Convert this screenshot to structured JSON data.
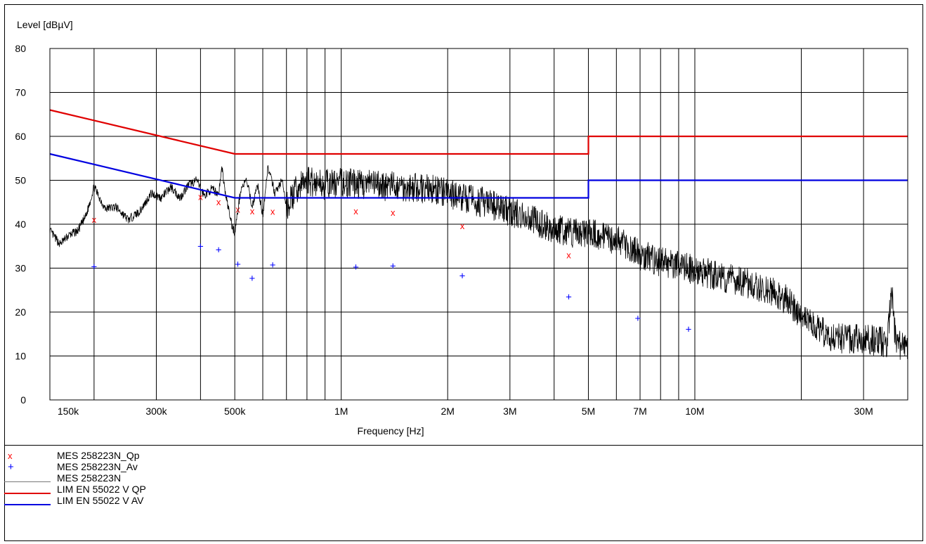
{
  "chart_data": {
    "type": "line",
    "ylabel": "Level [dBµV]",
    "xlabel": "Frequency [Hz]",
    "x_scale": "log",
    "xlim": [
      150000,
      40000000
    ],
    "ylim": [
      0,
      80
    ],
    "y_ticks": [
      0,
      10,
      20,
      30,
      40,
      50,
      60,
      70,
      80
    ],
    "y_tick_labels": [
      "0",
      "10",
      "20",
      "30",
      "40",
      "50",
      "60",
      "70",
      "80"
    ],
    "x_ticks": [
      150000,
      300000,
      500000,
      1000000,
      2000000,
      3000000,
      5000000,
      7000000,
      10000000,
      30000000
    ],
    "x_tick_labels": [
      "150k",
      "300k",
      "500k",
      "1M",
      "2M",
      "3M",
      "5M",
      "7M",
      "10M",
      "30M"
    ],
    "grid": true,
    "series": [
      {
        "name": "MES  258223N_Qp",
        "kind": "markers",
        "marker": "x",
        "color": "#ff0000",
        "points": [
          [
            200000,
            41
          ],
          [
            400000,
            46.2
          ],
          [
            450000,
            45
          ],
          [
            510000,
            43.3
          ],
          [
            560000,
            42.9
          ],
          [
            640000,
            42.8
          ],
          [
            1100000,
            42.9
          ],
          [
            1400000,
            42.6
          ],
          [
            2200000,
            39.5
          ],
          [
            4400000,
            32.9
          ]
        ]
      },
      {
        "name": "MES  258223N_Av",
        "kind": "markers",
        "marker": "+",
        "color": "#0000ff",
        "points": [
          [
            200000,
            30.2
          ],
          [
            400000,
            34.8
          ],
          [
            450000,
            34
          ],
          [
            510000,
            30.7
          ],
          [
            560000,
            27.5
          ],
          [
            640000,
            30.6
          ],
          [
            1100000,
            30.1
          ],
          [
            1400000,
            30.3
          ],
          [
            2200000,
            28.1
          ],
          [
            4400000,
            23.3
          ],
          [
            6900000,
            18.4
          ],
          [
            9600000,
            15.9
          ]
        ]
      },
      {
        "name": "MES  258223N",
        "kind": "trace",
        "color": "#000000",
        "points": [
          [
            150000,
            38.5
          ],
          [
            160000,
            35.5
          ],
          [
            170000,
            37.5
          ],
          [
            180000,
            38.5
          ],
          [
            190000,
            42
          ],
          [
            200000,
            48.5
          ],
          [
            215000,
            43.5
          ],
          [
            230000,
            44
          ],
          [
            250000,
            41
          ],
          [
            270000,
            43
          ],
          [
            290000,
            47
          ],
          [
            310000,
            46
          ],
          [
            330000,
            48.5
          ],
          [
            350000,
            46
          ],
          [
            370000,
            49
          ],
          [
            390000,
            50
          ],
          [
            410000,
            46.5
          ],
          [
            430000,
            48
          ],
          [
            450000,
            47
          ],
          [
            460000,
            53
          ],
          [
            470000,
            47
          ],
          [
            490000,
            40
          ],
          [
            500000,
            38
          ],
          [
            520000,
            48
          ],
          [
            540000,
            50
          ],
          [
            560000,
            44
          ],
          [
            580000,
            49
          ],
          [
            600000,
            42
          ],
          [
            620000,
            53
          ],
          [
            650000,
            47
          ],
          [
            680000,
            50
          ],
          [
            700000,
            44
          ],
          [
            750000,
            48
          ],
          [
            800000,
            50
          ],
          [
            900000,
            49
          ],
          [
            1000000,
            49.5
          ],
          [
            1200000,
            49
          ],
          [
            1500000,
            48.5
          ],
          [
            1800000,
            48
          ],
          [
            2000000,
            47
          ],
          [
            2500000,
            45
          ],
          [
            3000000,
            43
          ],
          [
            3500000,
            41
          ],
          [
            4000000,
            39
          ],
          [
            4500000,
            38
          ],
          [
            5000000,
            38
          ],
          [
            6000000,
            36.5
          ],
          [
            7000000,
            33
          ],
          [
            8000000,
            31.5
          ],
          [
            10000000,
            29.5
          ],
          [
            12000000,
            28
          ],
          [
            15000000,
            26
          ],
          [
            18000000,
            23
          ],
          [
            20000000,
            19
          ],
          [
            22000000,
            16.5
          ],
          [
            25000000,
            14
          ],
          [
            30000000,
            14
          ],
          [
            35000000,
            13
          ],
          [
            36000000,
            25
          ],
          [
            37000000,
            13
          ],
          [
            40000000,
            12
          ]
        ]
      },
      {
        "name": "LIM  EN 55022 V QP",
        "kind": "limit",
        "color": "#e00000",
        "points": [
          [
            150000,
            66
          ],
          [
            500000,
            56
          ],
          [
            5000000,
            56
          ],
          [
            5000000,
            60
          ],
          [
            40000000,
            60
          ]
        ]
      },
      {
        "name": "LIM  EN 55022 V AV",
        "kind": "limit",
        "color": "#0000e0",
        "points": [
          [
            150000,
            56
          ],
          [
            500000,
            46
          ],
          [
            5000000,
            46
          ],
          [
            5000000,
            50
          ],
          [
            40000000,
            50
          ]
        ]
      }
    ]
  }
}
